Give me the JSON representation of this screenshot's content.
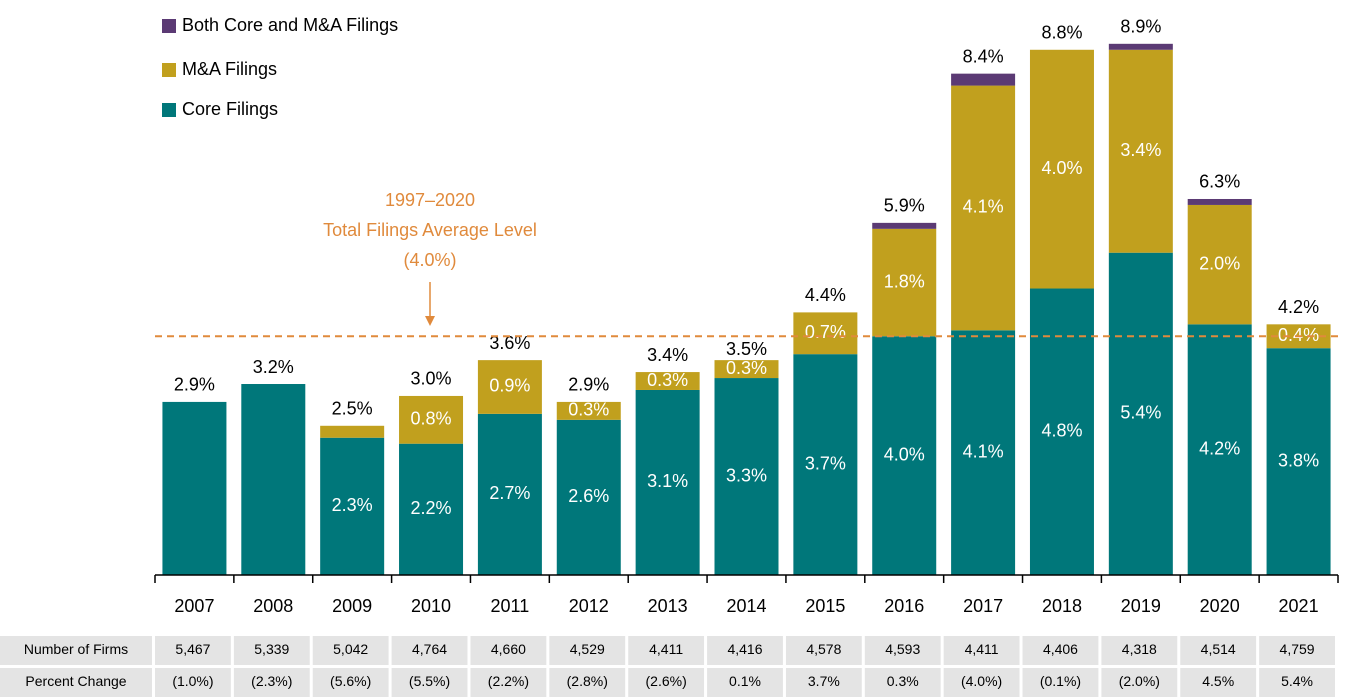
{
  "chart_data": {
    "type": "stacked_bar",
    "categories": [
      "2007",
      "2008",
      "2009",
      "2010",
      "2011",
      "2012",
      "2013",
      "2014",
      "2015",
      "2016",
      "2017",
      "2018",
      "2019",
      "2020",
      "2021"
    ],
    "series": [
      {
        "name": "Core Filings",
        "color": "#00777a",
        "values": [
          2.9,
          3.2,
          2.3,
          2.2,
          2.7,
          2.6,
          3.1,
          3.3,
          3.7,
          4.0,
          4.1,
          4.8,
          5.4,
          4.2,
          3.8
        ],
        "value_labels": [
          null,
          null,
          "2.3%",
          "2.2%",
          "2.7%",
          "2.6%",
          "3.1%",
          "3.3%",
          "3.7%",
          "4.0%",
          "4.1%",
          "4.8%",
          "5.4%",
          "4.2%",
          "3.8%"
        ]
      },
      {
        "name": "M&A Filings",
        "color": "#c1a01e",
        "values": [
          0,
          0,
          0.2,
          0.8,
          0.9,
          0.3,
          0.3,
          0.3,
          0.7,
          1.8,
          4.1,
          4.0,
          3.4,
          2.0,
          0.4
        ],
        "value_labels": [
          null,
          null,
          null,
          "0.8%",
          "0.9%",
          "0.3%",
          "0.3%",
          "0.3%",
          "0.7%",
          "1.8%",
          "4.1%",
          "4.0%",
          "3.4%",
          "2.0%",
          "0.4%"
        ]
      },
      {
        "name": "Both Core and M&A Filings",
        "color": "#5b3a74",
        "values": [
          0,
          0,
          0,
          0,
          0,
          0,
          0,
          0,
          0,
          0.1,
          0.2,
          0,
          0.1,
          0.1,
          0
        ]
      }
    ],
    "totals": [
      2.9,
      3.2,
      2.5,
      3.0,
      3.6,
      2.9,
      3.4,
      3.5,
      4.4,
      5.9,
      8.4,
      8.8,
      8.9,
      6.3,
      4.2
    ],
    "total_labels": [
      "2.9%",
      "3.2%",
      "2.5%",
      "3.0%",
      "3.6%",
      "2.9%",
      "3.4%",
      "3.5%",
      "4.4%",
      "5.9%",
      "8.4%",
      "8.8%",
      "8.9%",
      "6.3%",
      "4.2%"
    ],
    "ylim": [
      0,
      9.5
    ],
    "reference_line": {
      "value": 4.0,
      "color": "#e08a3c",
      "label": [
        "1997–2020",
        "Total Filings Average Level",
        "(4.0%)"
      ]
    }
  },
  "table": {
    "rows": [
      {
        "label": "Number of Firms",
        "values": [
          "5,467",
          "5,339",
          "5,042",
          "4,764",
          "4,660",
          "4,529",
          "4,411",
          "4,416",
          "4,578",
          "4,593",
          "4,411",
          "4,406",
          "4,318",
          "4,514",
          "4,759"
        ]
      },
      {
        "label": "Percent Change",
        "values": [
          "(1.0%)",
          "(2.3%)",
          "(5.6%)",
          "(5.5%)",
          "(2.2%)",
          "(2.8%)",
          "(2.6%)",
          "0.1%",
          "3.7%",
          "0.3%",
          "(4.0%)",
          "(0.1%)",
          "(2.0%)",
          "4.5%",
          "5.4%"
        ]
      }
    ]
  }
}
